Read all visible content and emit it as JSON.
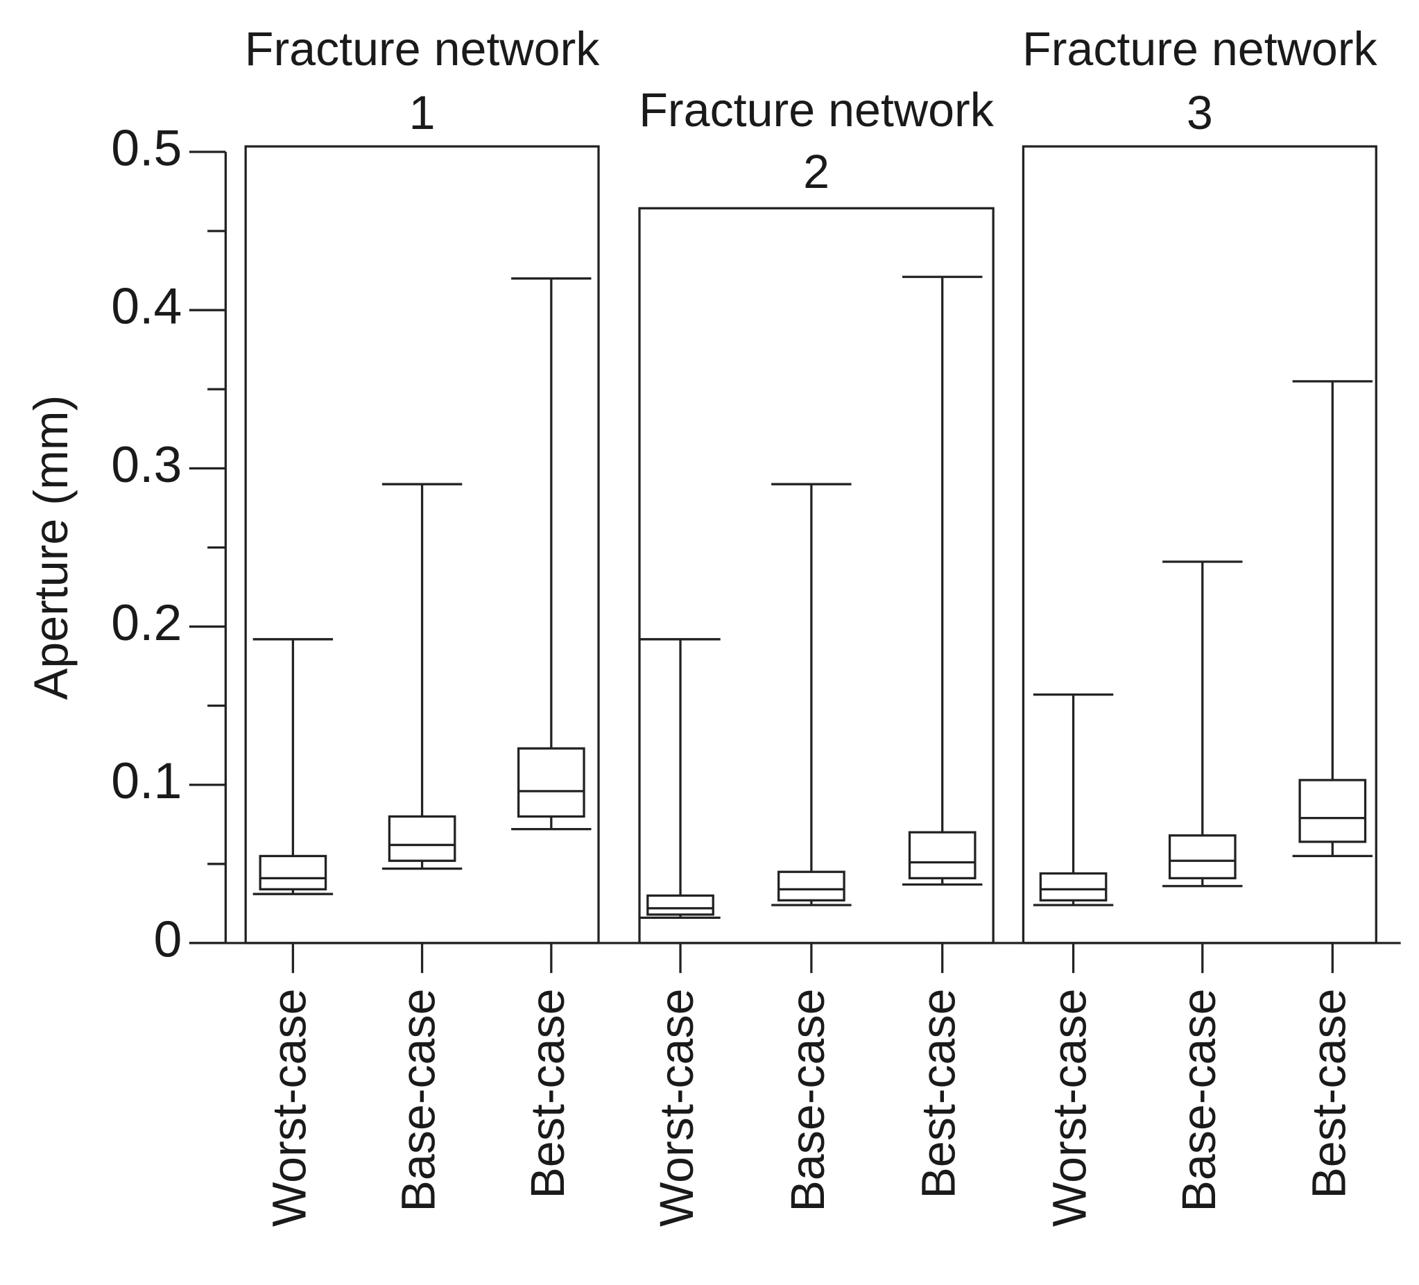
{
  "chart_data": {
    "type": "box",
    "y_label": "Aperture (mm)",
    "ylim": [
      0,
      0.5
    ],
    "yticks": [
      0,
      0.1,
      0.2,
      0.3,
      0.4,
      0.5
    ],
    "groups": [
      {
        "title": [
          "Fracture network",
          "1"
        ],
        "categories": [
          "Worst-case",
          "Base-case",
          "Best-case"
        ],
        "whislo": [
          0.031,
          0.047,
          0.072
        ],
        "q1": [
          0.034,
          0.052,
          0.08
        ],
        "median": [
          0.041,
          0.062,
          0.096
        ],
        "q3": [
          0.055,
          0.08,
          0.123
        ],
        "whishi": [
          0.192,
          0.29,
          0.42
        ]
      },
      {
        "title": [
          "Fracture network",
          "2"
        ],
        "categories": [
          "Worst-case",
          "Base-case",
          "Best-case"
        ],
        "whislo": [
          0.016,
          0.024,
          0.037
        ],
        "q1": [
          0.018,
          0.027,
          0.041
        ],
        "median": [
          0.022,
          0.034,
          0.051
        ],
        "q3": [
          0.03,
          0.045,
          0.07
        ],
        "whishi": [
          0.192,
          0.29,
          0.421
        ]
      },
      {
        "title": [
          "Fracture network",
          "3"
        ],
        "categories": [
          "Worst-case",
          "Base-case",
          "Best-case"
        ],
        "whislo": [
          0.024,
          0.036,
          0.055
        ],
        "q1": [
          0.027,
          0.041,
          0.064
        ],
        "median": [
          0.034,
          0.052,
          0.079
        ],
        "q3": [
          0.044,
          0.068,
          0.103
        ],
        "whishi": [
          0.157,
          0.241,
          0.355
        ]
      }
    ]
  }
}
